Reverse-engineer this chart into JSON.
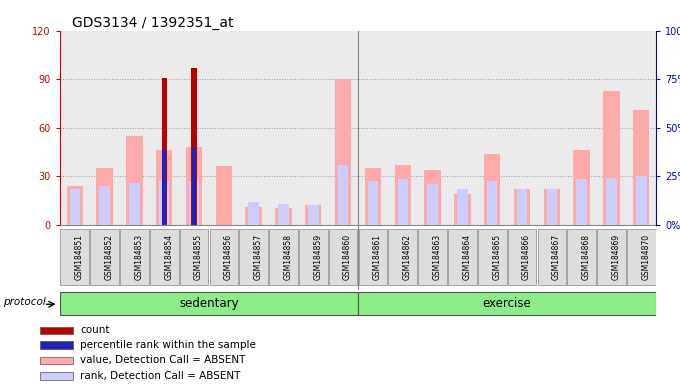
{
  "title": "GDS3134 / 1392351_at",
  "samples": [
    "GSM184851",
    "GSM184852",
    "GSM184853",
    "GSM184854",
    "GSM184855",
    "GSM184856",
    "GSM184857",
    "GSM184858",
    "GSM184859",
    "GSM184860",
    "GSM184861",
    "GSM184862",
    "GSM184863",
    "GSM184864",
    "GSM184865",
    "GSM184866",
    "GSM184867",
    "GSM184868",
    "GSM184869",
    "GSM184870"
  ],
  "count": [
    0,
    0,
    0,
    91,
    97,
    0,
    0,
    0,
    0,
    0,
    0,
    0,
    0,
    0,
    0,
    0,
    0,
    0,
    0,
    0
  ],
  "percentile_rank": [
    0,
    0,
    0,
    47,
    48,
    0,
    0,
    0,
    0,
    0,
    0,
    0,
    0,
    0,
    0,
    0,
    0,
    0,
    0,
    0
  ],
  "value_absent": [
    24,
    35,
    55,
    46,
    48,
    36,
    11,
    10,
    12,
    90,
    35,
    37,
    34,
    19,
    44,
    22,
    22,
    46,
    83,
    71
  ],
  "rank_absent": [
    22,
    24,
    26,
    27,
    27,
    0,
    14,
    13,
    12,
    37,
    27,
    28,
    25,
    22,
    27,
    22,
    22,
    28,
    29,
    30
  ],
  "ylim_left": [
    0,
    120
  ],
  "ylim_right": [
    0,
    100
  ],
  "yticks_left": [
    0,
    30,
    60,
    90,
    120
  ],
  "yticks_right": [
    0,
    25,
    50,
    75,
    100
  ],
  "ytick_labels_left": [
    "0",
    "30",
    "60",
    "90",
    "120"
  ],
  "ytick_labels_right": [
    "0%",
    "25%",
    "50%",
    "75%",
    "100%"
  ],
  "sedentary_range": [
    0,
    10
  ],
  "exercise_range": [
    10,
    20
  ],
  "legend": [
    {
      "label": "count",
      "color": "#bb0000"
    },
    {
      "label": "percentile rank within the sample",
      "color": "#2222bb"
    },
    {
      "label": "value, Detection Call = ABSENT",
      "color": "#ffaaaa"
    },
    {
      "label": "rank, Detection Call = ABSENT",
      "color": "#ccccff"
    }
  ],
  "count_color": "#bb0000",
  "prank_color": "#2222bb",
  "value_absent_color": "#ffaaaa",
  "rank_absent_color": "#ccccff",
  "bg_color": "#ffffff",
  "group_box_color": "#88ee88",
  "tick_label_color_left": "#cc0000",
  "tick_label_color_right": "#0000cc",
  "title_fontsize": 10,
  "tick_fontsize": 7,
  "label_fontsize": 8,
  "sample_box_color": "#dddddd"
}
